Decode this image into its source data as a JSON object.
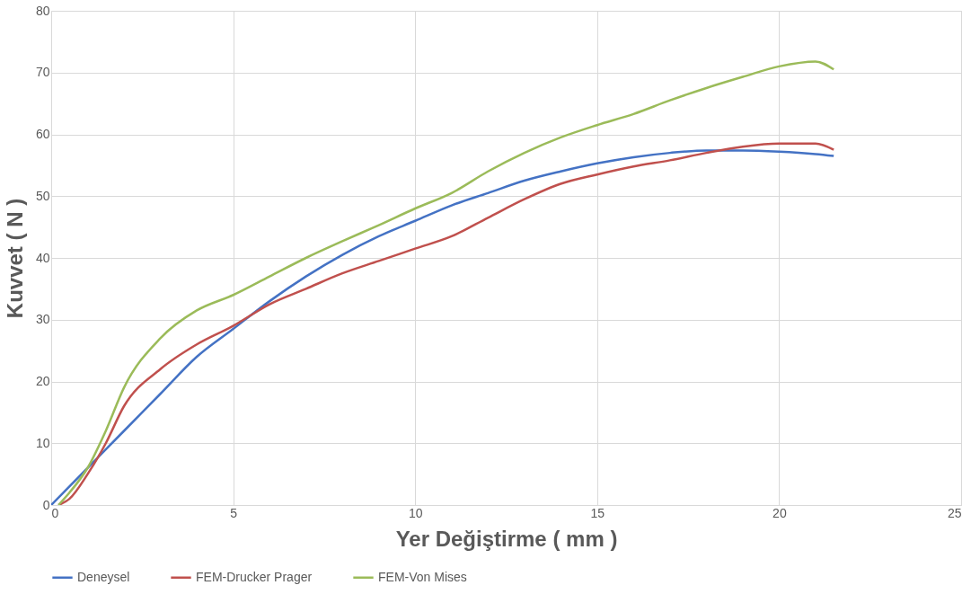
{
  "chart_data": {
    "type": "line",
    "xlabel": "Yer Değiştirme ( mm )",
    "ylabel": "Kuvvet ( N )",
    "xlim": [
      0,
      25
    ],
    "xticks": [
      0,
      5,
      10,
      15,
      20,
      25
    ],
    "ylim": [
      0,
      80
    ],
    "yticks": [
      0,
      10,
      20,
      30,
      40,
      50,
      60,
      70,
      80
    ],
    "grid": true,
    "legend": "bottom",
    "marker": "none",
    "line_style": "solid",
    "series": [
      {
        "name": "Deneysel",
        "color": "#4472c4",
        "x": [
          0,
          1,
          2,
          3,
          4,
          5,
          6,
          7,
          8,
          9,
          10,
          11,
          12,
          13,
          14,
          15,
          16,
          17,
          18,
          19,
          20,
          21,
          21.5
        ],
        "values": [
          0,
          6,
          12,
          18,
          24,
          28.5,
          33,
          37,
          40.5,
          43.5,
          46,
          48.5,
          50.5,
          52.5,
          54,
          55.3,
          56.3,
          57,
          57.4,
          57.4,
          57.2,
          56.8,
          56.5
        ]
      },
      {
        "name": "FEM-Drucker Prager",
        "color": "#c0504d",
        "x": [
          0.2,
          0.5,
          1,
          1.5,
          2,
          3,
          4,
          5,
          6,
          7,
          8,
          9,
          10,
          11,
          12,
          13,
          14,
          15,
          16,
          17,
          18,
          19,
          20,
          21,
          21.5
        ],
        "values": [
          0,
          1,
          5,
          10,
          16,
          22,
          26,
          29,
          32.5,
          35,
          37.5,
          39.5,
          41.5,
          43.5,
          46.5,
          49.5,
          52,
          53.5,
          54.8,
          55.8,
          57,
          58,
          58.5,
          58.5,
          57.5
        ]
      },
      {
        "name": "FEM-Von Mises",
        "color": "#9bbb59",
        "x": [
          0.2,
          0.5,
          1,
          1.5,
          2,
          3,
          4,
          5,
          6,
          7,
          8,
          9,
          10,
          11,
          12,
          13,
          14,
          15,
          16,
          17,
          18,
          19,
          20,
          21,
          21.5
        ],
        "values": [
          0,
          2,
          6,
          12,
          19,
          27,
          31.5,
          34,
          37,
          40,
          42.7,
          45.3,
          48,
          50.5,
          54,
          57,
          59.5,
          61.5,
          63.3,
          65.5,
          67.5,
          69.3,
          71,
          71.8,
          70.5
        ]
      }
    ]
  }
}
